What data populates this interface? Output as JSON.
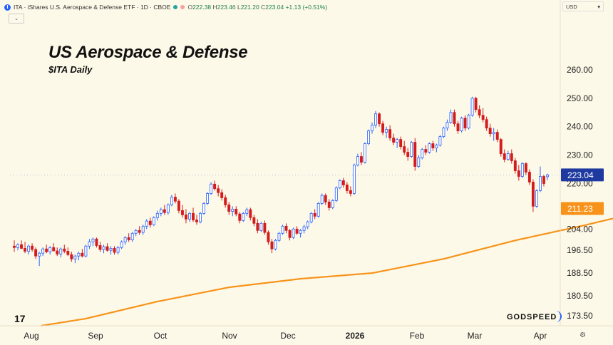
{
  "header": {
    "symbol_badge": "I",
    "symbol_line": "ITA · iShares U.S. Aerospace & Defense ETF · 1D · CBOE",
    "ohlc": {
      "o_label": "O",
      "o_value": "222.38",
      "h_label": "H",
      "h_value": "223.46",
      "l_label": "L",
      "l_value": "221.20",
      "c_label": "C",
      "c_value": "223.04",
      "change": "+1.13 (+0.51%)"
    },
    "dot_colors": [
      "#26a69a",
      "#f4a3a3"
    ]
  },
  "collapse_glyph": "⌄",
  "currency": {
    "label": "USD",
    "caret": "▾"
  },
  "annotation": {
    "title": "US Aerospace & Defense",
    "subtitle": "$ITA Daily"
  },
  "tv_logo": "17",
  "brand": "GODSPEED",
  "settings_icon": "⚙",
  "colors": {
    "up": "#2962ff",
    "down": "#d41c1c",
    "ma": "#f7931a",
    "last_price_bg": "#1e3aa0",
    "ma_label_bg": "#f7931a"
  },
  "chart_data": {
    "type": "candlestick",
    "ylim": [
      170,
      265
    ],
    "y_ticks": [
      "173.50",
      "180.50",
      "188.50",
      "196.50",
      "204.00",
      "211.23",
      "220.00",
      "223.04",
      "230.00",
      "240.00",
      "250.00",
      "260.00"
    ],
    "x_labels": [
      "Aug",
      "Sep",
      "Oct",
      "Nov",
      "Dec",
      "2026",
      "Feb",
      "Mar",
      "Apr"
    ],
    "last_price": {
      "value": 223.04,
      "label": "223.04"
    },
    "ma_last": {
      "value": 211.23,
      "label": "211.23"
    },
    "ma_anchors": [
      [
        0,
        168.5
      ],
      [
        20,
        172.5
      ],
      [
        40,
        178.5
      ],
      [
        60,
        183.5
      ],
      [
        80,
        186.5
      ],
      [
        100,
        188.5
      ],
      [
        120,
        193.5
      ],
      [
        140,
        200.0
      ],
      [
        160,
        205.5
      ],
      [
        170,
        208.5
      ],
      [
        180,
        210.8
      ],
      [
        185,
        211.23
      ]
    ],
    "candles": [
      {
        "o": 198.0,
        "h": 200.0,
        "l": 196.0,
        "c": 197.5
      },
      {
        "o": 197.5,
        "h": 199.0,
        "l": 196.5,
        "c": 198.5
      },
      {
        "o": 198.5,
        "h": 200.0,
        "l": 197.0,
        "c": 197.2
      },
      {
        "o": 197.2,
        "h": 199.5,
        "l": 195.5,
        "c": 196.2
      },
      {
        "o": 196.2,
        "h": 198.5,
        "l": 195.0,
        "c": 198.0
      },
      {
        "o": 198.0,
        "h": 199.0,
        "l": 196.0,
        "c": 196.8
      },
      {
        "o": 196.8,
        "h": 197.5,
        "l": 193.5,
        "c": 194.5
      },
      {
        "o": 194.5,
        "h": 196.0,
        "l": 191.0,
        "c": 195.5
      },
      {
        "o": 195.5,
        "h": 197.5,
        "l": 194.5,
        "c": 197.0
      },
      {
        "o": 197.0,
        "h": 198.5,
        "l": 195.5,
        "c": 196.0
      },
      {
        "o": 196.0,
        "h": 198.0,
        "l": 195.0,
        "c": 197.5
      },
      {
        "o": 197.5,
        "h": 199.0,
        "l": 196.5,
        "c": 196.3
      },
      {
        "o": 196.3,
        "h": 197.5,
        "l": 194.5,
        "c": 195.2
      },
      {
        "o": 195.2,
        "h": 197.5,
        "l": 194.0,
        "c": 197.0
      },
      {
        "o": 197.0,
        "h": 198.5,
        "l": 195.5,
        "c": 196.2
      },
      {
        "o": 196.2,
        "h": 197.5,
        "l": 194.5,
        "c": 195.0
      },
      {
        "o": 195.0,
        "h": 196.0,
        "l": 192.5,
        "c": 193.5
      },
      {
        "o": 193.5,
        "h": 195.0,
        "l": 192.0,
        "c": 194.5
      },
      {
        "o": 194.5,
        "h": 196.0,
        "l": 193.0,
        "c": 195.5
      },
      {
        "o": 195.5,
        "h": 197.0,
        "l": 194.0,
        "c": 194.5
      },
      {
        "o": 194.5,
        "h": 198.5,
        "l": 194.0,
        "c": 198.0
      },
      {
        "o": 198.0,
        "h": 200.5,
        "l": 197.0,
        "c": 199.5
      },
      {
        "o": 199.5,
        "h": 201.0,
        "l": 198.0,
        "c": 200.5
      },
      {
        "o": 200.5,
        "h": 201.0,
        "l": 197.5,
        "c": 198.2
      },
      {
        "o": 198.2,
        "h": 199.5,
        "l": 196.0,
        "c": 196.8
      },
      {
        "o": 196.8,
        "h": 198.5,
        "l": 195.5,
        "c": 197.8
      },
      {
        "o": 197.8,
        "h": 199.0,
        "l": 196.0,
        "c": 196.5
      },
      {
        "o": 196.5,
        "h": 198.0,
        "l": 195.0,
        "c": 197.2
      },
      {
        "o": 197.2,
        "h": 198.0,
        "l": 195.0,
        "c": 195.8
      },
      {
        "o": 195.8,
        "h": 198.0,
        "l": 195.0,
        "c": 197.5
      },
      {
        "o": 197.5,
        "h": 200.0,
        "l": 197.0,
        "c": 199.5
      },
      {
        "o": 199.5,
        "h": 201.5,
        "l": 198.5,
        "c": 201.0
      },
      {
        "o": 201.0,
        "h": 202.5,
        "l": 199.5,
        "c": 200.2
      },
      {
        "o": 200.2,
        "h": 203.0,
        "l": 199.5,
        "c": 202.5
      },
      {
        "o": 202.5,
        "h": 204.0,
        "l": 201.5,
        "c": 203.5
      },
      {
        "o": 203.5,
        "h": 205.0,
        "l": 202.0,
        "c": 202.8
      },
      {
        "o": 202.8,
        "h": 205.5,
        "l": 202.0,
        "c": 205.0
      },
      {
        "o": 205.0,
        "h": 207.5,
        "l": 204.0,
        "c": 206.8
      },
      {
        "o": 206.8,
        "h": 208.0,
        "l": 204.5,
        "c": 205.5
      },
      {
        "o": 205.5,
        "h": 208.5,
        "l": 205.0,
        "c": 208.0
      },
      {
        "o": 208.0,
        "h": 210.5,
        "l": 207.0,
        "c": 209.5
      },
      {
        "o": 209.5,
        "h": 211.5,
        "l": 208.5,
        "c": 210.8
      },
      {
        "o": 210.8,
        "h": 212.5,
        "l": 209.0,
        "c": 209.8
      },
      {
        "o": 209.8,
        "h": 213.0,
        "l": 209.0,
        "c": 212.5
      },
      {
        "o": 212.5,
        "h": 216.0,
        "l": 212.0,
        "c": 215.2
      },
      {
        "o": 215.2,
        "h": 216.5,
        "l": 213.0,
        "c": 213.8
      },
      {
        "o": 213.8,
        "h": 214.5,
        "l": 209.5,
        "c": 210.5
      },
      {
        "o": 210.5,
        "h": 212.5,
        "l": 208.0,
        "c": 209.0
      },
      {
        "o": 209.0,
        "h": 211.0,
        "l": 206.0,
        "c": 207.5
      },
      {
        "o": 207.5,
        "h": 210.0,
        "l": 206.5,
        "c": 209.5
      },
      {
        "o": 209.5,
        "h": 211.5,
        "l": 206.5,
        "c": 207.2
      },
      {
        "o": 207.2,
        "h": 209.0,
        "l": 205.5,
        "c": 206.5
      },
      {
        "o": 206.5,
        "h": 210.0,
        "l": 206.0,
        "c": 209.5
      },
      {
        "o": 209.5,
        "h": 213.5,
        "l": 209.0,
        "c": 213.0
      },
      {
        "o": 213.0,
        "h": 217.0,
        "l": 212.5,
        "c": 216.5
      },
      {
        "o": 216.5,
        "h": 220.5,
        "l": 216.0,
        "c": 219.8
      },
      {
        "o": 219.8,
        "h": 221.0,
        "l": 217.5,
        "c": 218.2
      },
      {
        "o": 218.2,
        "h": 219.5,
        "l": 215.5,
        "c": 216.8
      },
      {
        "o": 216.8,
        "h": 218.0,
        "l": 214.0,
        "c": 215.0
      },
      {
        "o": 215.0,
        "h": 216.0,
        "l": 211.5,
        "c": 212.5
      },
      {
        "o": 212.5,
        "h": 213.5,
        "l": 209.0,
        "c": 210.2
      },
      {
        "o": 210.2,
        "h": 212.0,
        "l": 208.5,
        "c": 211.0
      },
      {
        "o": 211.0,
        "h": 212.0,
        "l": 208.5,
        "c": 209.3
      },
      {
        "o": 209.3,
        "h": 210.0,
        "l": 206.0,
        "c": 207.0
      },
      {
        "o": 207.0,
        "h": 210.0,
        "l": 206.5,
        "c": 209.5
      },
      {
        "o": 209.5,
        "h": 211.5,
        "l": 208.5,
        "c": 210.8
      },
      {
        "o": 210.8,
        "h": 211.5,
        "l": 207.0,
        "c": 208.0
      },
      {
        "o": 208.0,
        "h": 209.0,
        "l": 205.0,
        "c": 206.0
      },
      {
        "o": 206.0,
        "h": 207.5,
        "l": 202.5,
        "c": 203.5
      },
      {
        "o": 203.5,
        "h": 206.5,
        "l": 203.0,
        "c": 206.0
      },
      {
        "o": 206.0,
        "h": 207.0,
        "l": 202.0,
        "c": 202.8
      },
      {
        "o": 202.8,
        "h": 203.5,
        "l": 198.5,
        "c": 199.5
      },
      {
        "o": 199.5,
        "h": 200.5,
        "l": 195.5,
        "c": 197.0
      },
      {
        "o": 197.0,
        "h": 200.5,
        "l": 196.5,
        "c": 200.0
      },
      {
        "o": 200.0,
        "h": 203.0,
        "l": 199.5,
        "c": 202.5
      },
      {
        "o": 202.5,
        "h": 205.5,
        "l": 202.0,
        "c": 205.0
      },
      {
        "o": 205.0,
        "h": 206.0,
        "l": 202.5,
        "c": 203.5
      },
      {
        "o": 203.5,
        "h": 204.0,
        "l": 200.0,
        "c": 201.0
      },
      {
        "o": 201.0,
        "h": 204.5,
        "l": 200.5,
        "c": 204.0
      },
      {
        "o": 204.0,
        "h": 205.0,
        "l": 202.0,
        "c": 202.5
      },
      {
        "o": 202.5,
        "h": 204.0,
        "l": 201.0,
        "c": 203.5
      },
      {
        "o": 203.5,
        "h": 205.5,
        "l": 202.5,
        "c": 204.8
      },
      {
        "o": 204.8,
        "h": 207.0,
        "l": 204.0,
        "c": 206.5
      },
      {
        "o": 206.5,
        "h": 210.0,
        "l": 206.0,
        "c": 209.5
      },
      {
        "o": 209.5,
        "h": 211.0,
        "l": 207.5,
        "c": 208.5
      },
      {
        "o": 208.5,
        "h": 213.5,
        "l": 208.0,
        "c": 213.0
      },
      {
        "o": 213.0,
        "h": 216.5,
        "l": 212.5,
        "c": 215.8
      },
      {
        "o": 215.8,
        "h": 216.5,
        "l": 212.5,
        "c": 213.5
      },
      {
        "o": 213.5,
        "h": 214.5,
        "l": 210.5,
        "c": 211.5
      },
      {
        "o": 211.5,
        "h": 214.5,
        "l": 211.0,
        "c": 214.0
      },
      {
        "o": 214.0,
        "h": 219.0,
        "l": 213.5,
        "c": 218.5
      },
      {
        "o": 218.5,
        "h": 221.5,
        "l": 218.0,
        "c": 221.0
      },
      {
        "o": 221.0,
        "h": 222.0,
        "l": 218.5,
        "c": 219.5
      },
      {
        "o": 219.5,
        "h": 220.5,
        "l": 216.5,
        "c": 217.5
      },
      {
        "o": 217.5,
        "h": 219.0,
        "l": 215.5,
        "c": 216.5
      },
      {
        "o": 216.5,
        "h": 227.0,
        "l": 216.0,
        "c": 226.5
      },
      {
        "o": 226.5,
        "h": 230.5,
        "l": 226.0,
        "c": 229.5
      },
      {
        "o": 229.5,
        "h": 231.0,
        "l": 226.5,
        "c": 227.5
      },
      {
        "o": 227.5,
        "h": 234.5,
        "l": 227.0,
        "c": 234.0
      },
      {
        "o": 234.0,
        "h": 239.0,
        "l": 233.5,
        "c": 238.5
      },
      {
        "o": 238.5,
        "h": 241.5,
        "l": 237.5,
        "c": 240.5
      },
      {
        "o": 240.5,
        "h": 245.5,
        "l": 239.5,
        "c": 244.5
      },
      {
        "o": 244.5,
        "h": 245.0,
        "l": 240.0,
        "c": 241.0
      },
      {
        "o": 241.0,
        "h": 242.0,
        "l": 237.0,
        "c": 238.0
      },
      {
        "o": 238.0,
        "h": 240.0,
        "l": 236.0,
        "c": 239.0
      },
      {
        "o": 239.0,
        "h": 240.5,
        "l": 235.0,
        "c": 236.0
      },
      {
        "o": 236.0,
        "h": 237.5,
        "l": 233.5,
        "c": 234.5
      },
      {
        "o": 234.5,
        "h": 236.0,
        "l": 232.5,
        "c": 235.5
      },
      {
        "o": 235.5,
        "h": 236.5,
        "l": 232.0,
        "c": 233.0
      },
      {
        "o": 233.0,
        "h": 235.0,
        "l": 230.0,
        "c": 231.0
      },
      {
        "o": 231.0,
        "h": 232.5,
        "l": 228.0,
        "c": 229.5
      },
      {
        "o": 229.5,
        "h": 235.0,
        "l": 229.0,
        "c": 234.5
      },
      {
        "o": 234.5,
        "h": 236.0,
        "l": 224.5,
        "c": 226.0
      },
      {
        "o": 226.0,
        "h": 230.0,
        "l": 225.5,
        "c": 229.0
      },
      {
        "o": 229.0,
        "h": 232.5,
        "l": 228.5,
        "c": 232.0
      },
      {
        "o": 232.0,
        "h": 233.5,
        "l": 230.0,
        "c": 231.0
      },
      {
        "o": 231.0,
        "h": 234.5,
        "l": 230.5,
        "c": 234.0
      },
      {
        "o": 234.0,
        "h": 235.0,
        "l": 231.5,
        "c": 232.5
      },
      {
        "o": 232.5,
        "h": 234.0,
        "l": 231.0,
        "c": 233.5
      },
      {
        "o": 233.5,
        "h": 237.0,
        "l": 233.0,
        "c": 236.5
      },
      {
        "o": 236.5,
        "h": 240.0,
        "l": 236.0,
        "c": 239.5
      },
      {
        "o": 239.5,
        "h": 242.5,
        "l": 238.5,
        "c": 241.5
      },
      {
        "o": 241.5,
        "h": 246.0,
        "l": 241.0,
        "c": 245.0
      },
      {
        "o": 245.0,
        "h": 246.0,
        "l": 240.0,
        "c": 241.0
      },
      {
        "o": 241.0,
        "h": 242.0,
        "l": 237.5,
        "c": 238.5
      },
      {
        "o": 238.5,
        "h": 243.5,
        "l": 238.0,
        "c": 243.0
      },
      {
        "o": 243.0,
        "h": 244.0,
        "l": 238.5,
        "c": 239.5
      },
      {
        "o": 239.5,
        "h": 244.5,
        "l": 239.0,
        "c": 244.0
      },
      {
        "o": 244.0,
        "h": 250.5,
        "l": 243.5,
        "c": 250.0
      },
      {
        "o": 250.0,
        "h": 250.5,
        "l": 245.0,
        "c": 246.0
      },
      {
        "o": 246.0,
        "h": 247.5,
        "l": 243.0,
        "c": 244.0
      },
      {
        "o": 244.0,
        "h": 246.5,
        "l": 241.5,
        "c": 242.5
      },
      {
        "o": 242.5,
        "h": 243.5,
        "l": 238.5,
        "c": 239.5
      },
      {
        "o": 239.5,
        "h": 241.0,
        "l": 236.5,
        "c": 237.5
      },
      {
        "o": 237.5,
        "h": 239.5,
        "l": 235.0,
        "c": 238.0
      },
      {
        "o": 238.0,
        "h": 239.0,
        "l": 234.5,
        "c": 235.5
      },
      {
        "o": 235.5,
        "h": 236.0,
        "l": 229.5,
        "c": 230.5
      },
      {
        "o": 230.5,
        "h": 232.0,
        "l": 227.5,
        "c": 228.5
      },
      {
        "o": 228.5,
        "h": 231.5,
        "l": 228.0,
        "c": 230.5
      },
      {
        "o": 230.5,
        "h": 232.0,
        "l": 227.0,
        "c": 228.0
      },
      {
        "o": 228.0,
        "h": 229.0,
        "l": 223.5,
        "c": 224.5
      },
      {
        "o": 224.5,
        "h": 226.5,
        "l": 221.0,
        "c": 222.5
      },
      {
        "o": 222.5,
        "h": 227.5,
        "l": 222.0,
        "c": 227.0
      },
      {
        "o": 227.0,
        "h": 227.5,
        "l": 223.0,
        "c": 224.0
      },
      {
        "o": 224.0,
        "h": 225.0,
        "l": 219.5,
        "c": 220.5
      },
      {
        "o": 220.5,
        "h": 221.5,
        "l": 210.0,
        "c": 212.0
      },
      {
        "o": 212.0,
        "h": 218.0,
        "l": 211.5,
        "c": 217.5
      },
      {
        "o": 217.5,
        "h": 226.0,
        "l": 217.0,
        "c": 222.5
      },
      {
        "o": 222.5,
        "h": 223.0,
        "l": 219.0,
        "c": 220.0
      },
      {
        "o": 222.38,
        "h": 223.46,
        "l": 221.2,
        "c": 223.04
      }
    ]
  }
}
